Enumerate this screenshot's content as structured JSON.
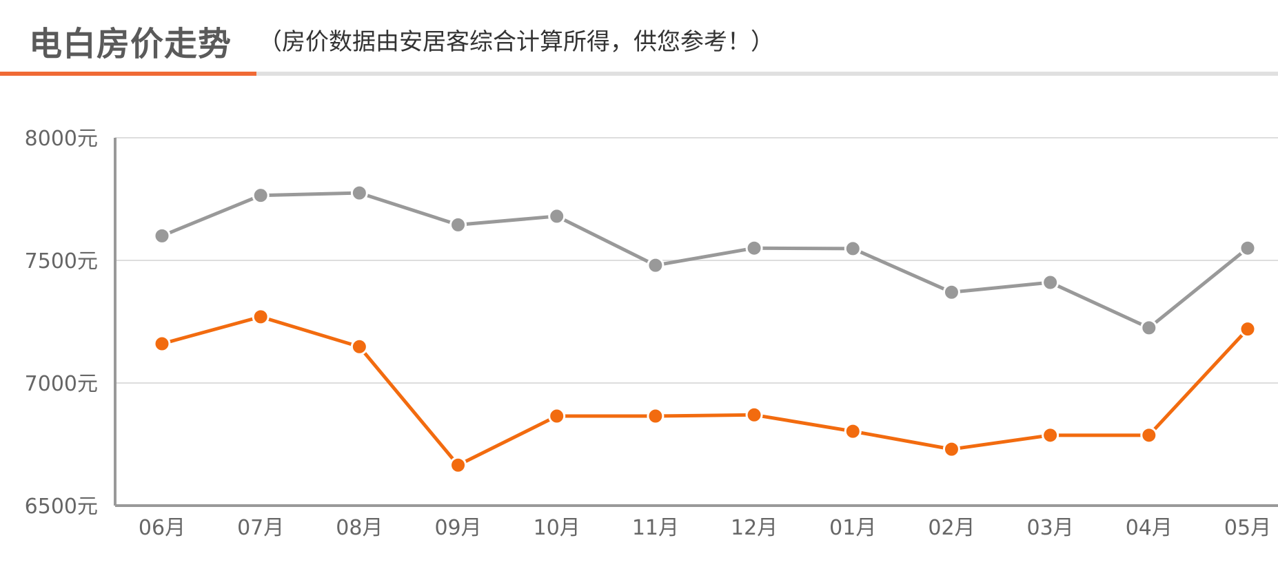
{
  "header": {
    "title": "电白房价走势",
    "subtitle": "（房价数据由安居客综合计算所得，供您参考！）",
    "accent_color": "#f06a35"
  },
  "chart_data": {
    "type": "line",
    "categories": [
      "06月",
      "07月",
      "08月",
      "09月",
      "10月",
      "11月",
      "12月",
      "01月",
      "02月",
      "03月",
      "04月",
      "05月"
    ],
    "y_ticks": [
      "8000元",
      "7500元",
      "7000元",
      "6500元"
    ],
    "ylim": [
      6500,
      8000
    ],
    "grid": true,
    "series": [
      {
        "color": "#999999",
        "values": [
          7600,
          7765,
          7775,
          7645,
          7680,
          7480,
          7550,
          7548,
          7370,
          7410,
          7225,
          7550
        ]
      },
      {
        "color": "#f26b0f",
        "values": [
          7160,
          7270,
          7148,
          6665,
          6865,
          6865,
          6870,
          6803,
          6730,
          6787,
          6787,
          7220
        ]
      }
    ]
  }
}
